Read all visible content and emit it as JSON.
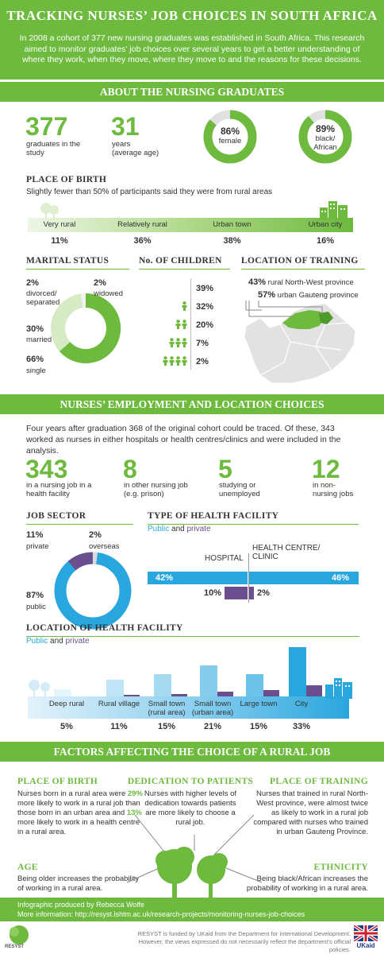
{
  "header": {
    "title": "TRACKING NURSES’ JOB CHOICES IN SOUTH AFRICA",
    "intro": "In 2008 a cohort of 377 new nursing graduates was established in South Africa. This research aimed to monitor graduates’ job choices over several years to get a better understanding of where they work, when they move, where they move to and the reasons for these decisions."
  },
  "about": {
    "heading": "ABOUT THE NURSING GRADUATES",
    "graduates_value": "377",
    "graduates_label": "graduates in the study",
    "age_value": "31",
    "age_label_1": "years",
    "age_label_2": "(average age)",
    "female_pct": "86%",
    "female_label": "female",
    "female_fraction": 0.86,
    "black_pct": "89%",
    "black_label_1": "black/",
    "black_label_2": "African",
    "black_fraction": 0.89
  },
  "place_of_birth": {
    "heading": "PLACE OF BIRTH",
    "subtitle": "Slightly fewer than 50% of participants said they were from rural areas",
    "categories": [
      {
        "label": "Very rural",
        "pct": "11%"
      },
      {
        "label": "Relatively rural",
        "pct": "36%"
      },
      {
        "label": "Urban town",
        "pct": "38%"
      },
      {
        "label": "Urban city",
        "pct": "16%"
      }
    ]
  },
  "marital": {
    "heading": "MARITAL STATUS",
    "divorced_pct": "2%",
    "divorced_label_1": "divorced/",
    "divorced_label_2": "separated",
    "widowed_pct": "2%",
    "widowed_label": "widowed",
    "married_pct": "30%",
    "married_label": "married",
    "single_pct": "66%",
    "single_label": "single"
  },
  "children": {
    "heading": "No. OF CHILDREN",
    "rows": [
      "39%",
      "32%",
      "20%",
      "7%",
      "2%"
    ]
  },
  "training": {
    "heading": "LOCATION OF TRAINING",
    "rural_pct": "43%",
    "rural_label": "rural North-West province",
    "urban_pct": "57%",
    "urban_label": "urban Gauteng province"
  },
  "employment": {
    "heading": "NURSES’ EMPLOYMENT AND LOCATION CHOICES",
    "intro": "Four years after graduation 368 of the original cohort could be traced. Of these, 343 worked as nurses in either hospitals or health centres/clinics and were included in the analysis.",
    "stats": [
      {
        "value": "343",
        "label_1": "in a nursing job in a",
        "label_2": "health facility"
      },
      {
        "value": "8",
        "label_1": "in other nursing job",
        "label_2": "(e.g. prison)"
      },
      {
        "value": "5",
        "label_1": "studying or",
        "label_2": "unemployed"
      },
      {
        "value": "12",
        "label_1": "in non-",
        "label_2": "nursing jobs"
      }
    ]
  },
  "job_sector": {
    "heading": "JOB SECTOR",
    "private_pct": "11%",
    "private_label": "private",
    "overseas_pct": "2%",
    "overseas_label": "overseas",
    "public_pct": "87%",
    "public_label": "public"
  },
  "facility_type": {
    "heading": "TYPE OF HEALTH FACILITY",
    "legend_public": "Public",
    "legend_and": "and",
    "legend_private": "private",
    "hospital_label": "HOSPITAL",
    "clinic_label_1": "HEALTH CENTRE/",
    "clinic_label_2": "CLINIC",
    "hospital_public": "42%",
    "clinic_public": "46%",
    "hospital_private": "10%",
    "clinic_private": "2%"
  },
  "location_facility": {
    "heading": "LOCATION OF HEALTH FACILITY",
    "legend_public": "Public",
    "legend_and": "and",
    "legend_private": "private",
    "categories": [
      {
        "label_1": "Deep rural",
        "label_2": "",
        "pct": "5%"
      },
      {
        "label_1": "Rural village",
        "label_2": "",
        "pct": "11%"
      },
      {
        "label_1": "Small town",
        "label_2": "(rural area)",
        "pct": "15%"
      },
      {
        "label_1": "Small town",
        "label_2": "(urban area)",
        "pct": "21%"
      },
      {
        "label_1": "Large town",
        "label_2": "",
        "pct": "15%"
      },
      {
        "label_1": "City",
        "label_2": "",
        "pct": "33%"
      }
    ]
  },
  "factors": {
    "heading": "FACTORS AFFECTING THE CHOICE OF A RURAL JOB",
    "pob_heading": "PLACE OF BIRTH",
    "pob_text_1": "Nurses born in a rural area were",
    "pob_hl_1": "29%",
    "pob_text_2": "more likely to work in a rural job than those born in an urban area and",
    "pob_hl_2": "13%",
    "pob_text_3": "more likely to work in a health centre in a rural area.",
    "ded_heading": "DEDICATION TO PATIENTS",
    "ded_text": "Nurses with higher levels of dedication towards patients are more likely to choose a rural job.",
    "pot_heading": "PLACE OF TRAINING",
    "pot_text": "Nurses that trained in rural North-West province, were almost twice as likely to work in a rural job compared with nurses who trained in urban Gauteng Province.",
    "age_heading": "AGE",
    "age_text": "Being older increases the probability of working in a rural area.",
    "eth_heading": "ETHNICITY",
    "eth_text": "Being black/African increases the probability of working in a rural area."
  },
  "footer": {
    "credit": "Infographic produced by Rebecca Wolfe",
    "more_info": "More information: http://resyst.lshtm.ac.uk/research-projects/monitoring-nurses-job-choices",
    "logo_text": "RESYST",
    "funding_1": "RESYST is funded by UKaid from the Department for International Development.",
    "funding_2": "However, the views expressed do not necessarily reflect the department’s official policies.",
    "ukaid": "UKaid"
  },
  "colors": {
    "green": "#6dba3e",
    "blue": "#29a6de",
    "purple": "#6b4e8e"
  }
}
